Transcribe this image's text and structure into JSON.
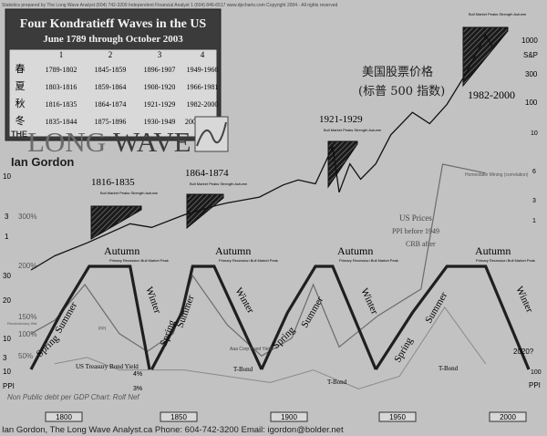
{
  "credit_line": "Statistics prepared by The Long Wave Analyst (604) 742-3200 Independent Financial Analyst 1 (604) 846-6517 www.dpcharts.com Copyright 2004 - All rights reserved",
  "table": {
    "title": "Four Kondratieff Waves in the US",
    "subtitle": "June 1789 through October 2003",
    "col_headers": [
      "1",
      "2",
      "3",
      "4"
    ],
    "rows": [
      {
        "season": "春",
        "cells": [
          "1789-1802",
          "1845-1859",
          "1896-1907",
          "1949-1966"
        ]
      },
      {
        "season": "夏",
        "cells": [
          "1803-1816",
          "1859-1864",
          "1908-1920",
          "1966-1981"
        ]
      },
      {
        "season": "秋",
        "cells": [
          "1816-1835",
          "1864-1874",
          "1921-1929",
          "1982-2000"
        ]
      },
      {
        "season": "冬",
        "cells": [
          "1835-1844",
          "1875-1896",
          "1930-1949",
          "2000-2020?"
        ]
      }
    ]
  },
  "logo": {
    "the": "THE",
    "long": "LONG",
    "wave": "WAVE",
    "author": "Ian Gordon"
  },
  "chinese_title": {
    "line1": "美国股票价格",
    "line2": "(标普 500 指数)"
  },
  "sp_label": "S&P",
  "sp_ticks": [
    "1000",
    "300",
    "100"
  ],
  "right_ticks": [
    "10",
    "6",
    "3",
    "1",
    "100"
  ],
  "left_axis": {
    "stock_ticks": [
      "10",
      "3",
      "1"
    ],
    "price_ticks": [
      "300%",
      "200%",
      "150%",
      "100%",
      "50%"
    ],
    "left_side_ticks": [
      "30",
      "20",
      "10",
      "3",
      "10"
    ],
    "ppi": "PPI",
    "ppi_right": "PPI"
  },
  "bubbles": [
    {
      "label": "1816-1835",
      "note": "Bull Market Peaks Strength Autumn"
    },
    {
      "label": "1864-1874",
      "note": "Bull Market Peaks Strength Autumn"
    },
    {
      "label": "1921-1929",
      "note": "Bull Market Peaks Strength Autumn"
    },
    {
      "label": "1982-2000",
      "note": "Bull Market Peaks Strength Autumn"
    }
  ],
  "seasons": {
    "spring": "Spring",
    "summer": "Summer",
    "autumn": "Autumn",
    "winter": "Winter",
    "autumn_note": "Primary Recession Bull Market Peak"
  },
  "annotations": {
    "us_prices": "US Prices",
    "ppi_before": "PPI before 1949",
    "cri_after": "CRB after",
    "tbond_yield": "US Treasury Bond Yield",
    "tbond": "T-Bond",
    "ppi_small": "PPI",
    "pct4": "4%",
    "pct3": "3%",
    "aaa": "Aaa Corp Bond Yield",
    "year2020": "2020?",
    "homestake": "Homestake Mining (correlation)",
    "revolutionary": "Revolutionary War",
    "footer_note": "Non Public debt per GDP Chart: Rolf Nef"
  },
  "decades": [
    "1800",
    "1850",
    "1900",
    "1950",
    "2000"
  ],
  "footer": "Ian Gordon, The Long Wave Analyst.ca Phone: 604-742-3200 Email: igordon@bolder.net",
  "chart_data": {
    "type": "line",
    "title": "Four Kondratieff Waves in the US",
    "subtitle": "June 1789 through October 2003",
    "x_range": [
      1789,
      2020
    ],
    "series": [
      {
        "name": "S&P",
        "x": [
          1789,
          1800,
          1815,
          1835,
          1845,
          1860,
          1875,
          1880,
          1895,
          1906,
          1913,
          1921,
          1929,
          1932,
          1937,
          1942,
          1949,
          1956,
          1966,
          1974,
          1982,
          1990,
          2000,
          2003
        ],
        "values": [
          0.3,
          0.5,
          0.8,
          1.6,
          1.4,
          2.2,
          3.1,
          3.4,
          4.2,
          6.5,
          7.8,
          6.8,
          26,
          5,
          14,
          8,
          14,
          40,
          90,
          60,
          120,
          330,
          1450,
          1000
        ]
      },
      {
        "name": "US Prices",
        "x": [
          1789,
          1800,
          1814,
          1830,
          1843,
          1855,
          1864,
          1880,
          1896,
          1910,
          1920,
          1932,
          1950,
          1970,
          1980,
          2000
        ],
        "values": [
          120,
          150,
          230,
          120,
          80,
          120,
          250,
          140,
          70,
          110,
          230,
          90,
          160,
          220,
          500,
          480
        ]
      },
      {
        "name": "US Treasury Bond Yield",
        "x": [
          1800,
          1815,
          1830,
          1845,
          1860,
          1880,
          1900,
          1920,
          1941,
          1960,
          1981,
          2000
        ],
        "values": [
          6,
          7,
          5,
          5,
          5,
          4,
          3,
          5,
          2,
          4,
          15,
          6
        ]
      }
    ],
    "waves": [
      {
        "wave": 1,
        "spring": "1789-1802",
        "summer": "1803-1816",
        "autumn": "1816-1835",
        "winter": "1835-1844"
      },
      {
        "wave": 2,
        "spring": "1845-1859",
        "summer": "1859-1864",
        "autumn": "1864-1874",
        "winter": "1875-1896"
      },
      {
        "wave": 3,
        "spring": "1896-1907",
        "summer": "1908-1920",
        "autumn": "1921-1929",
        "winter": "1930-1949"
      },
      {
        "wave": 4,
        "spring": "1949-1966",
        "summer": "1966-1981",
        "autumn": "1982-2000",
        "winter": "2000-2020?"
      }
    ],
    "xticks": [
      "1800",
      "1850",
      "1900",
      "1950",
      "2000"
    ],
    "grid": false
  }
}
